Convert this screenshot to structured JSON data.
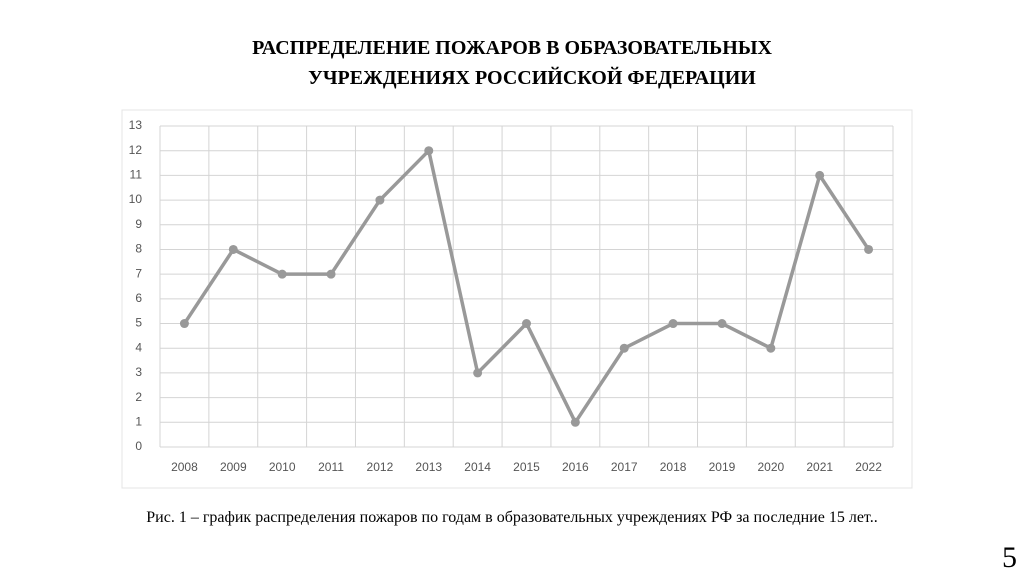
{
  "chart_data": {
    "type": "line",
    "title": [
      "РАСПРЕДЕЛЕНИЕ ПОЖАРОВ В ОБРАЗОВАТЕЛЬНЫХ",
      "УЧРЕЖДЕНИЯХ РОССИЙСКОЙ ФЕДЕРАЦИИ"
    ],
    "categories": [
      "2008",
      "2009",
      "2010",
      "2011",
      "2012",
      "2013",
      "2014",
      "2015",
      "2016",
      "2017",
      "2018",
      "2019",
      "2020",
      "2021",
      "2022"
    ],
    "values": [
      5,
      8,
      7,
      7,
      10,
      12,
      3,
      5,
      1,
      4,
      5,
      5,
      4,
      11,
      8
    ],
    "color": "#999999",
    "ylim": [
      0,
      13
    ],
    "yticks": [
      0,
      1,
      2,
      3,
      4,
      5,
      6,
      7,
      8,
      9,
      10,
      11,
      12,
      13
    ],
    "grid": true,
    "caption": "Рис. 1 – график распределения пожаров по годам в образовательных учреждениях РФ за последние 15 лет.."
  },
  "page_number": "5"
}
